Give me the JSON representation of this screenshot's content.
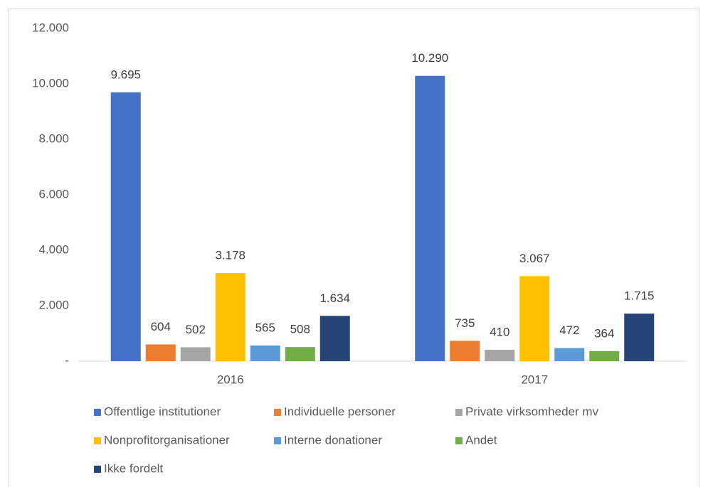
{
  "chart_data": {
    "type": "bar",
    "categories": [
      "2016",
      "2017"
    ],
    "series": [
      {
        "name": "Offentlige institutioner",
        "color": "#4472c4",
        "values": [
          9695,
          10290
        ],
        "value_labels": [
          "9.695",
          "10.290"
        ]
      },
      {
        "name": "Individuelle personer",
        "color": "#ed7d31",
        "values": [
          604,
          735
        ],
        "value_labels": [
          "604",
          "735"
        ]
      },
      {
        "name": "Private virksomheder mv",
        "color": "#a5a5a5",
        "values": [
          502,
          410
        ],
        "value_labels": [
          "502",
          "410"
        ]
      },
      {
        "name": "Nonprofitorganisationer",
        "color": "#ffc000",
        "values": [
          3178,
          3067
        ],
        "value_labels": [
          "3.178",
          "3.067"
        ]
      },
      {
        "name": "Interne donationer",
        "color": "#5b9bd5",
        "values": [
          565,
          472
        ],
        "value_labels": [
          "565",
          "472"
        ]
      },
      {
        "name": "Andet",
        "color": "#70ad47",
        "values": [
          508,
          364
        ],
        "value_labels": [
          "508",
          "364"
        ]
      },
      {
        "name": "Ikke fordelt",
        "color": "#264478",
        "values": [
          1634,
          1715
        ],
        "value_labels": [
          "1.634",
          "1.715"
        ]
      }
    ],
    "ylim": [
      0,
      12000
    ],
    "yticks": [
      {
        "value": 0,
        "label": "-"
      },
      {
        "value": 2000,
        "label": "2.000"
      },
      {
        "value": 4000,
        "label": "4.000"
      },
      {
        "value": 6000,
        "label": "6.000"
      },
      {
        "value": 8000,
        "label": "8.000"
      },
      {
        "value": 10000,
        "label": "10.000"
      },
      {
        "value": 12000,
        "label": "12.000"
      }
    ],
    "grid": false,
    "legend": "bottom"
  }
}
